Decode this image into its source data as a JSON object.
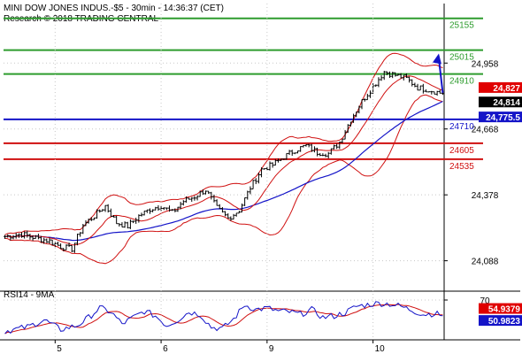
{
  "header": {
    "title": "MINI DOW JONES INDUS.-$5 - 30min - 14:36:37 (CET)",
    "source": "Research © 2018 TRADING CENTRAL"
  },
  "chart_data": [
    {
      "type": "candlestick",
      "price_ticks": [
        "24,958",
        "24,668",
        "24,378",
        "24,088"
      ],
      "price_tick_values": [
        24958,
        24668,
        24378,
        24088
      ],
      "ylim": [
        23958,
        25220
      ],
      "x_labels": [
        "5",
        "6",
        "9",
        "10"
      ],
      "x_label_bar_index": [
        18,
        56,
        94,
        132
      ],
      "bar_count": 158,
      "levels": [
        {
          "label": "25155",
          "value": 25155,
          "color": "#2e9c2e"
        },
        {
          "label": "25015",
          "value": 25015,
          "color": "#2e9c2e"
        },
        {
          "label": "24910",
          "value": 24910,
          "color": "#2e9c2e"
        },
        {
          "label": "24710",
          "value": 24710,
          "color": "#1414c8"
        },
        {
          "label": "24605",
          "value": 24605,
          "color": "#d01010"
        },
        {
          "label": "24535",
          "value": 24535,
          "color": "#d01010"
        }
      ],
      "price_tags": [
        {
          "label": "24,827",
          "value": 24827,
          "color": "#e00000"
        },
        {
          "label": "24,814",
          "value": 24814,
          "color": "#000000"
        },
        {
          "label": "24,775.5",
          "value": 24775.5,
          "color": "#1414c8"
        }
      ],
      "projection": {
        "from_value": 24827,
        "to_value": 25000,
        "color": "#1414c8"
      },
      "close_anchors": [
        [
          0,
          24195
        ],
        [
          6,
          24205
        ],
        [
          12,
          24185
        ],
        [
          16,
          24175
        ],
        [
          20,
          24150
        ],
        [
          24,
          24140
        ],
        [
          28,
          24245
        ],
        [
          32,
          24285
        ],
        [
          36,
          24330
        ],
        [
          40,
          24255
        ],
        [
          44,
          24240
        ],
        [
          48,
          24285
        ],
        [
          52,
          24315
        ],
        [
          56,
          24330
        ],
        [
          60,
          24300
        ],
        [
          64,
          24350
        ],
        [
          68,
          24370
        ],
        [
          72,
          24400
        ],
        [
          76,
          24320
        ],
        [
          80,
          24275
        ],
        [
          84,
          24310
        ],
        [
          88,
          24410
        ],
        [
          92,
          24490
        ],
        [
          96,
          24510
        ],
        [
          100,
          24545
        ],
        [
          104,
          24575
        ],
        [
          108,
          24595
        ],
        [
          112,
          24565
        ],
        [
          116,
          24560
        ],
        [
          120,
          24610
        ],
        [
          124,
          24710
        ],
        [
          128,
          24790
        ],
        [
          132,
          24855
        ],
        [
          136,
          24920
        ],
        [
          140,
          24905
        ],
        [
          144,
          24890
        ],
        [
          148,
          24850
        ],
        [
          152,
          24840
        ],
        [
          156,
          24827
        ]
      ],
      "series": [
        {
          "name": "price",
          "color": "#000000"
        },
        {
          "name": "moving-average-fast",
          "color": "#d01010"
        },
        {
          "name": "moving-average-slow",
          "color": "#1414c8"
        },
        {
          "name": "bollinger-upper",
          "color": "#d01010"
        },
        {
          "name": "bollinger-lower",
          "color": "#d01010"
        }
      ]
    },
    {
      "type": "line",
      "title": "RSI14 - 9MA",
      "ylim": [
        20,
        80
      ],
      "ticks": [
        "70"
      ],
      "tick_values": [
        70
      ],
      "rsi_anchors": [
        [
          0,
          31
        ],
        [
          8,
          36
        ],
        [
          14,
          45
        ],
        [
          20,
          33
        ],
        [
          26,
          38
        ],
        [
          30,
          48
        ],
        [
          34,
          60
        ],
        [
          38,
          55
        ],
        [
          42,
          40
        ],
        [
          46,
          48
        ],
        [
          50,
          56
        ],
        [
          54,
          50
        ],
        [
          58,
          38
        ],
        [
          62,
          45
        ],
        [
          66,
          55
        ],
        [
          70,
          52
        ],
        [
          74,
          36
        ],
        [
          78,
          34
        ],
        [
          82,
          46
        ],
        [
          86,
          64
        ],
        [
          90,
          58
        ],
        [
          94,
          60
        ],
        [
          98,
          56
        ],
        [
          102,
          55
        ],
        [
          106,
          52
        ],
        [
          110,
          58
        ],
        [
          114,
          48
        ],
        [
          118,
          50
        ],
        [
          122,
          54
        ],
        [
          126,
          62
        ],
        [
          130,
          64
        ],
        [
          134,
          66
        ],
        [
          138,
          65
        ],
        [
          142,
          62
        ],
        [
          146,
          57
        ],
        [
          150,
          52
        ],
        [
          154,
          53
        ],
        [
          157,
          51
        ]
      ],
      "tags": [
        {
          "label": "54.9379",
          "value": 54.9379,
          "color": "#e00000"
        },
        {
          "label": "50.9823",
          "value": 50.9823,
          "color": "#1414c8"
        }
      ],
      "series": [
        {
          "name": "rsi14",
          "color": "#1414c8"
        },
        {
          "name": "rsi-9ma",
          "color": "#d01010"
        }
      ]
    }
  ]
}
